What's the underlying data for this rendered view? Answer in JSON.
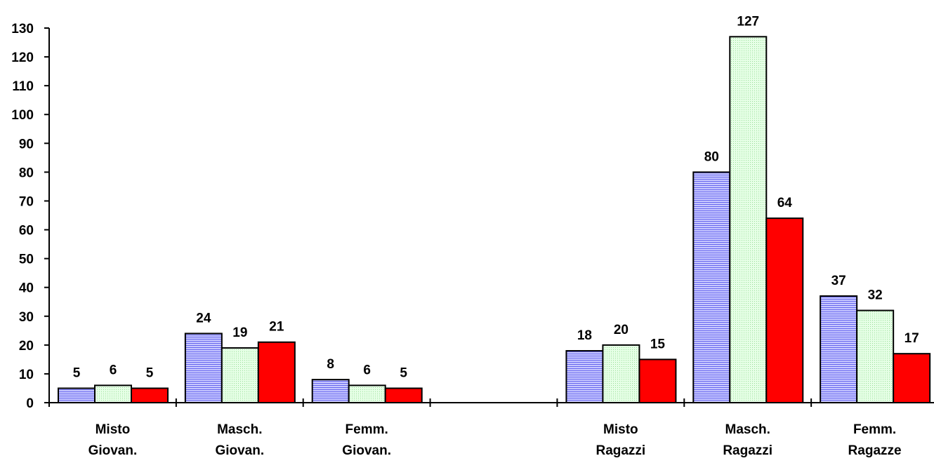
{
  "chart_data": {
    "type": "bar",
    "categories": [
      [
        "Misto",
        "Giovan."
      ],
      [
        "Masch.",
        "Giovan."
      ],
      [
        "Femm.",
        "Giovan."
      ],
      [
        "",
        ""
      ],
      [
        "Misto",
        "Ragazzi"
      ],
      [
        "Masch.",
        "Ragazzi"
      ],
      [
        "Femm.",
        "Ragazze"
      ]
    ],
    "series": [
      {
        "values": [
          5,
          24,
          8,
          null,
          18,
          80,
          37
        ],
        "color": "#9999ff",
        "pattern": "horizontal-stripes"
      },
      {
        "values": [
          6,
          19,
          6,
          null,
          20,
          127,
          32
        ],
        "color": "#ccffcc",
        "pattern": "dotted"
      },
      {
        "values": [
          5,
          21,
          5,
          null,
          15,
          64,
          17
        ],
        "color": "#ff0000",
        "pattern": "solid"
      }
    ],
    "ylim": [
      0,
      130
    ],
    "yticks": [
      0,
      10,
      20,
      30,
      40,
      50,
      60,
      70,
      80,
      90,
      100,
      110,
      120,
      130
    ],
    "data_labels": true,
    "grid": false,
    "title": "",
    "xlabel": "",
    "ylabel": ""
  }
}
